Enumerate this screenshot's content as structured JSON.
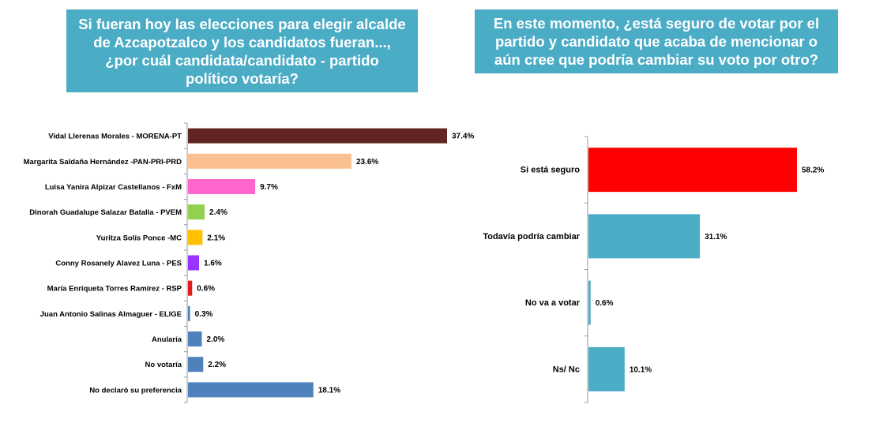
{
  "chart_data": [
    {
      "type": "bar",
      "orientation": "horizontal",
      "title": "Si fueran hoy las elecciones para elegir alcalde de Azcapotzalco y los candidatos fueran..., ¿por cuál candidata/candidato - partido político votaría?",
      "xlabel": "",
      "ylabel": "",
      "xlim": [
        0,
        37.4
      ],
      "grid": false,
      "categories": [
        "Vidal Llerenas Morales - MORENA-PT",
        "Margarita Saldaña Hernández -PAN-PRI-PRD",
        "Luisa Yanira Alpizar Castellanos - FxM",
        "Dinorah Guadalupe Salazar Batalla - PVEM",
        "Yuritza Solís Ponce -MC",
        "Conny Rosanely Alavez Luna - PES",
        "María Enriqueta Torres Ramírez - RSP",
        "Juan Antonio Salinas Almaguer - ELIGE",
        "Anularía",
        "No votaría",
        "No declaró su preferencia"
      ],
      "values": [
        37.4,
        23.6,
        9.7,
        2.4,
        2.1,
        1.6,
        0.6,
        0.3,
        2.0,
        2.2,
        18.1
      ],
      "value_labels": [
        "37.4%",
        "23.6%",
        "9.7%",
        "2.4%",
        "2.1%",
        "1.6%",
        "0.6%",
        "0.3%",
        "2.0%",
        "2.2%",
        "18.1%"
      ],
      "colors": [
        "#632523",
        "#fac090",
        "#ff66cc",
        "#92d050",
        "#ffc000",
        "#9933ff",
        "#e31a1c",
        "#4f81bd",
        "#4f81bd",
        "#4f81bd",
        "#4f81bd"
      ]
    },
    {
      "type": "bar",
      "orientation": "horizontal",
      "title": "En este momento, ¿está seguro de votar por el partido y candidato que acaba de mencionar o aún cree que podría cambiar su voto por otro?",
      "xlabel": "",
      "ylabel": "",
      "xlim": [
        0,
        58.2
      ],
      "grid": false,
      "categories": [
        "Si está seguro",
        "Todavía podría cambiar",
        "No va a votar",
        "Ns/ Nc"
      ],
      "values": [
        58.2,
        31.1,
        0.6,
        10.1
      ],
      "value_labels": [
        "58.2%",
        "31.1%",
        "0.6%",
        "10.1%"
      ],
      "colors": [
        "#ff0000",
        "#4bacc6",
        "#4bacc6",
        "#4bacc6"
      ],
      "label_colors": [
        "#ff0000",
        "#000000",
        "#000000",
        "#000000"
      ]
    }
  ]
}
